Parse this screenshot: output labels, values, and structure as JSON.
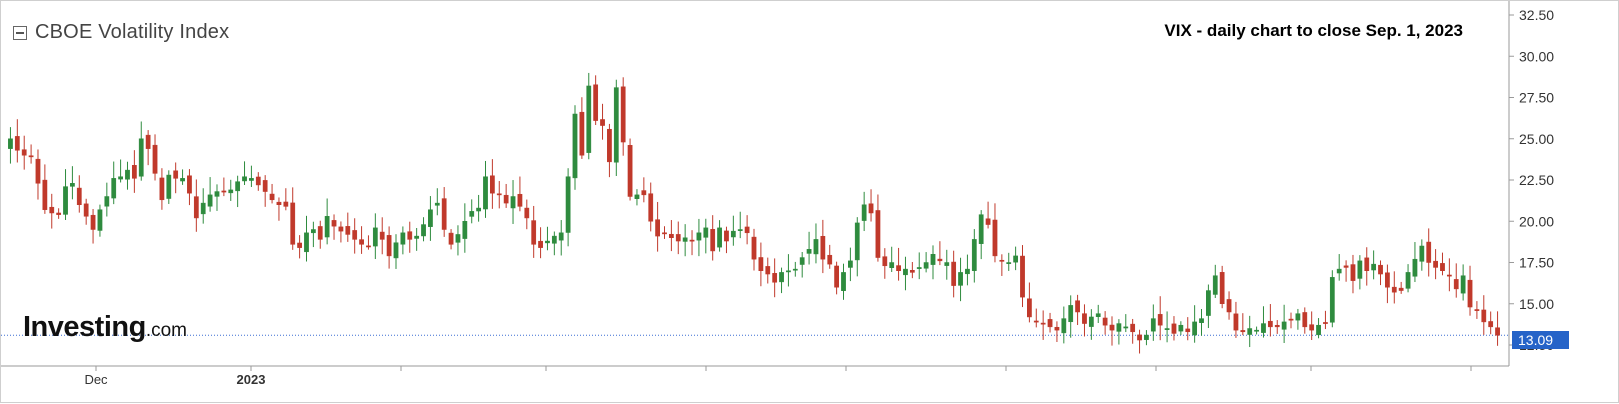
{
  "legend": {
    "title": "CBOE Volatility Index"
  },
  "annotation": "VIX - daily chart to close Sep. 1, 2023",
  "brand": {
    "main": "Investing",
    "suffix": ".com"
  },
  "last_price": "13.09",
  "colors": {
    "up": "#2e8b3e",
    "down": "#c0392b",
    "last_line": "#3b6fd4",
    "price_tag": "#2563c8"
  },
  "chart_data": {
    "type": "candlestick",
    "y_ticks": [
      "32.50",
      "30.00",
      "27.50",
      "25.00",
      "22.50",
      "20.00",
      "17.50",
      "15.00",
      "12.50"
    ],
    "ylim": [
      12.5,
      32.5
    ],
    "x_labels": [
      "Dec",
      "2023"
    ],
    "grid": false,
    "last_value": 13.09,
    "closes": [
      25.0,
      24.3,
      24.0,
      23.9,
      22.3,
      20.7,
      20.5,
      20.4,
      22.1,
      22.3,
      21.0,
      20.3,
      19.5,
      20.7,
      21.5,
      22.6,
      22.7,
      23.1,
      22.6,
      25.0,
      24.4,
      22.9,
      21.3,
      22.8,
      22.6,
      22.6,
      21.7,
      20.2,
      21.1,
      21.6,
      21.8,
      21.8,
      21.9,
      22.4,
      22.7,
      22.6,
      22.2,
      21.8,
      21.3,
      21.0,
      20.9,
      18.6,
      18.4,
      19.3,
      19.5,
      18.9,
      20.3,
      19.7,
      19.4,
      19.2,
      18.9,
      18.6,
      18.5,
      19.6,
      18.9,
      17.9,
      18.7,
      19.3,
      18.9,
      19.1,
      19.8,
      20.7,
      21.1,
      19.5,
      18.6,
      19.2,
      20.0,
      20.6,
      20.8,
      22.7,
      21.7,
      21.6,
      21.1,
      21.5,
      20.9,
      20.2,
      18.6,
      18.4,
      18.8,
      19.1,
      19.3,
      22.7,
      26.5,
      24.0,
      28.2,
      26.1,
      25.8,
      23.6,
      28.1,
      24.8,
      21.5,
      21.6,
      21.6,
      20.0,
      19.1,
      19.3,
      19.0,
      18.8,
      19.0,
      18.8,
      19.3,
      19.6,
      18.2,
      19.6,
      18.8,
      19.4,
      19.5,
      19.3,
      17.7,
      17.0,
      16.8,
      16.3,
      16.9,
      17.0,
      17.1,
      17.8,
      18.3,
      18.9,
      17.7,
      17.4,
      16.0,
      16.9,
      17.6,
      19.9,
      21.0,
      20.5,
      17.8,
      17.3,
      17.5,
      17.0,
      17.1,
      16.9,
      17.2,
      17.5,
      18.0,
      17.6,
      17.5,
      16.1,
      16.9,
      17.1,
      18.9,
      20.4,
      19.8,
      17.9,
      17.6,
      17.5,
      17.9,
      15.4,
      14.2,
      13.9,
      13.8,
      13.6,
      13.4,
      14.1,
      14.9,
      14.5,
      13.8,
      14.2,
      14.4,
      13.7,
      13.4,
      13.8,
      13.6,
      13.3,
      12.8,
      13.1,
      14.1,
      13.7,
      13.5,
      13.2,
      13.7,
      13.3,
      13.9,
      14.1,
      15.8,
      16.7,
      15.0,
      14.5,
      13.4,
      13.3,
      13.5,
      13.4,
      13.8,
      13.6,
      13.6,
      13.9,
      14.0,
      14.4,
      13.6,
      13.4,
      13.7,
      13.8,
      16.6,
      17.1,
      17.2,
      16.4,
      17.6,
      17.0,
      17.4,
      16.8,
      16.0,
      15.7,
      15.8,
      16.9,
      17.7,
      18.5,
      17.5,
      17.2,
      17.0,
      16.7,
      15.9,
      16.7,
      14.8,
      14.6,
      13.9,
      13.6,
      13.09
    ]
  }
}
